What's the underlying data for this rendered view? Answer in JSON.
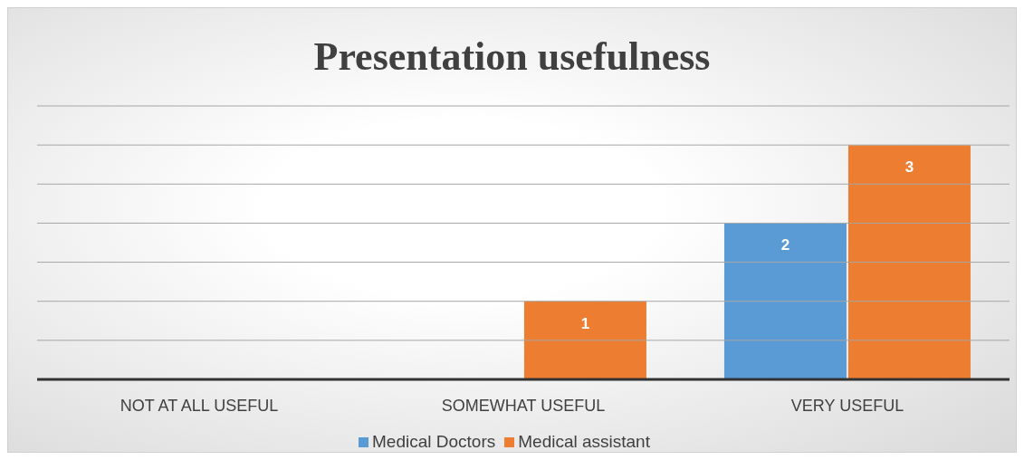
{
  "chart_data": {
    "type": "bar",
    "title": "Presentation usefulness",
    "categories": [
      "NOT AT ALL USEFUL",
      "SOMEWHAT USEFUL",
      "VERY USEFUL"
    ],
    "series": [
      {
        "name": "Medical Doctors",
        "color": "#5b9bd5",
        "values": [
          null,
          null,
          2
        ]
      },
      {
        "name": "Medical assistant",
        "color": "#ed7d31",
        "values": [
          null,
          1,
          3
        ]
      }
    ],
    "ylim": [
      0,
      3.5
    ],
    "yticks": [
      {
        "value": 0,
        "label": null
      },
      {
        "value": 0.5,
        "label": null
      },
      {
        "value": 1,
        "label": null
      },
      {
        "value": 1.5,
        "label": null
      },
      {
        "value": 2,
        "label": null
      },
      {
        "value": 2.5,
        "label": null
      },
      {
        "value": 3,
        "label": null
      },
      {
        "value": 3.5,
        "label": null
      }
    ],
    "grid": "y",
    "legend": "bottom",
    "tick_labels": "x",
    "data_labels": true
  }
}
